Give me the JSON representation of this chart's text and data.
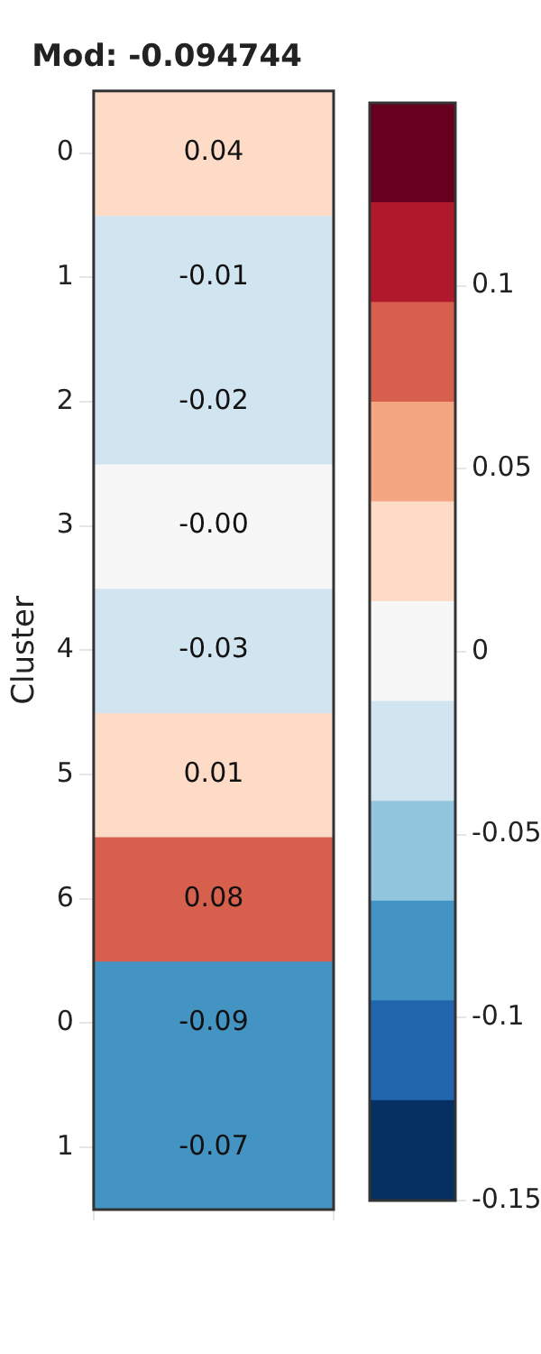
{
  "chart_data": {
    "type": "heatmap",
    "title": "Mod: -0.094744",
    "ylabel": "Cluster",
    "categories": [
      null
    ],
    "y_categories": [
      "0",
      "1",
      "2",
      "3",
      "4",
      "5",
      "6",
      "0",
      "1"
    ],
    "cells": [
      [
        0.04
      ],
      [
        -0.014
      ],
      [
        -0.02
      ],
      [
        0
      ],
      [
        -0.03
      ],
      [
        0.014
      ],
      [
        0.08
      ],
      [
        -0.09
      ],
      [
        -0.07
      ]
    ],
    "cell_labels": [
      [
        "0.04"
      ],
      [
        "-0.01"
      ],
      [
        "-0.02"
      ],
      [
        "-0.00"
      ],
      [
        "-0.03"
      ],
      [
        "0.01"
      ],
      [
        "0.08"
      ],
      [
        "-0.09"
      ],
      [
        "-0.07"
      ]
    ],
    "colors": [
      "#053061",
      "#2166ac",
      "#4393c3",
      "#92c5de",
      "#d1e5f0",
      "#f7f7f7",
      "#fddbc7",
      "#f4a582",
      "#d6604d",
      "#b2182b",
      "#67001f"
    ],
    "clim": [
      -0.15,
      0.15
    ],
    "cticks": [
      -0.15,
      -0.1,
      -0.05,
      0,
      0.05,
      0.1
    ]
  }
}
